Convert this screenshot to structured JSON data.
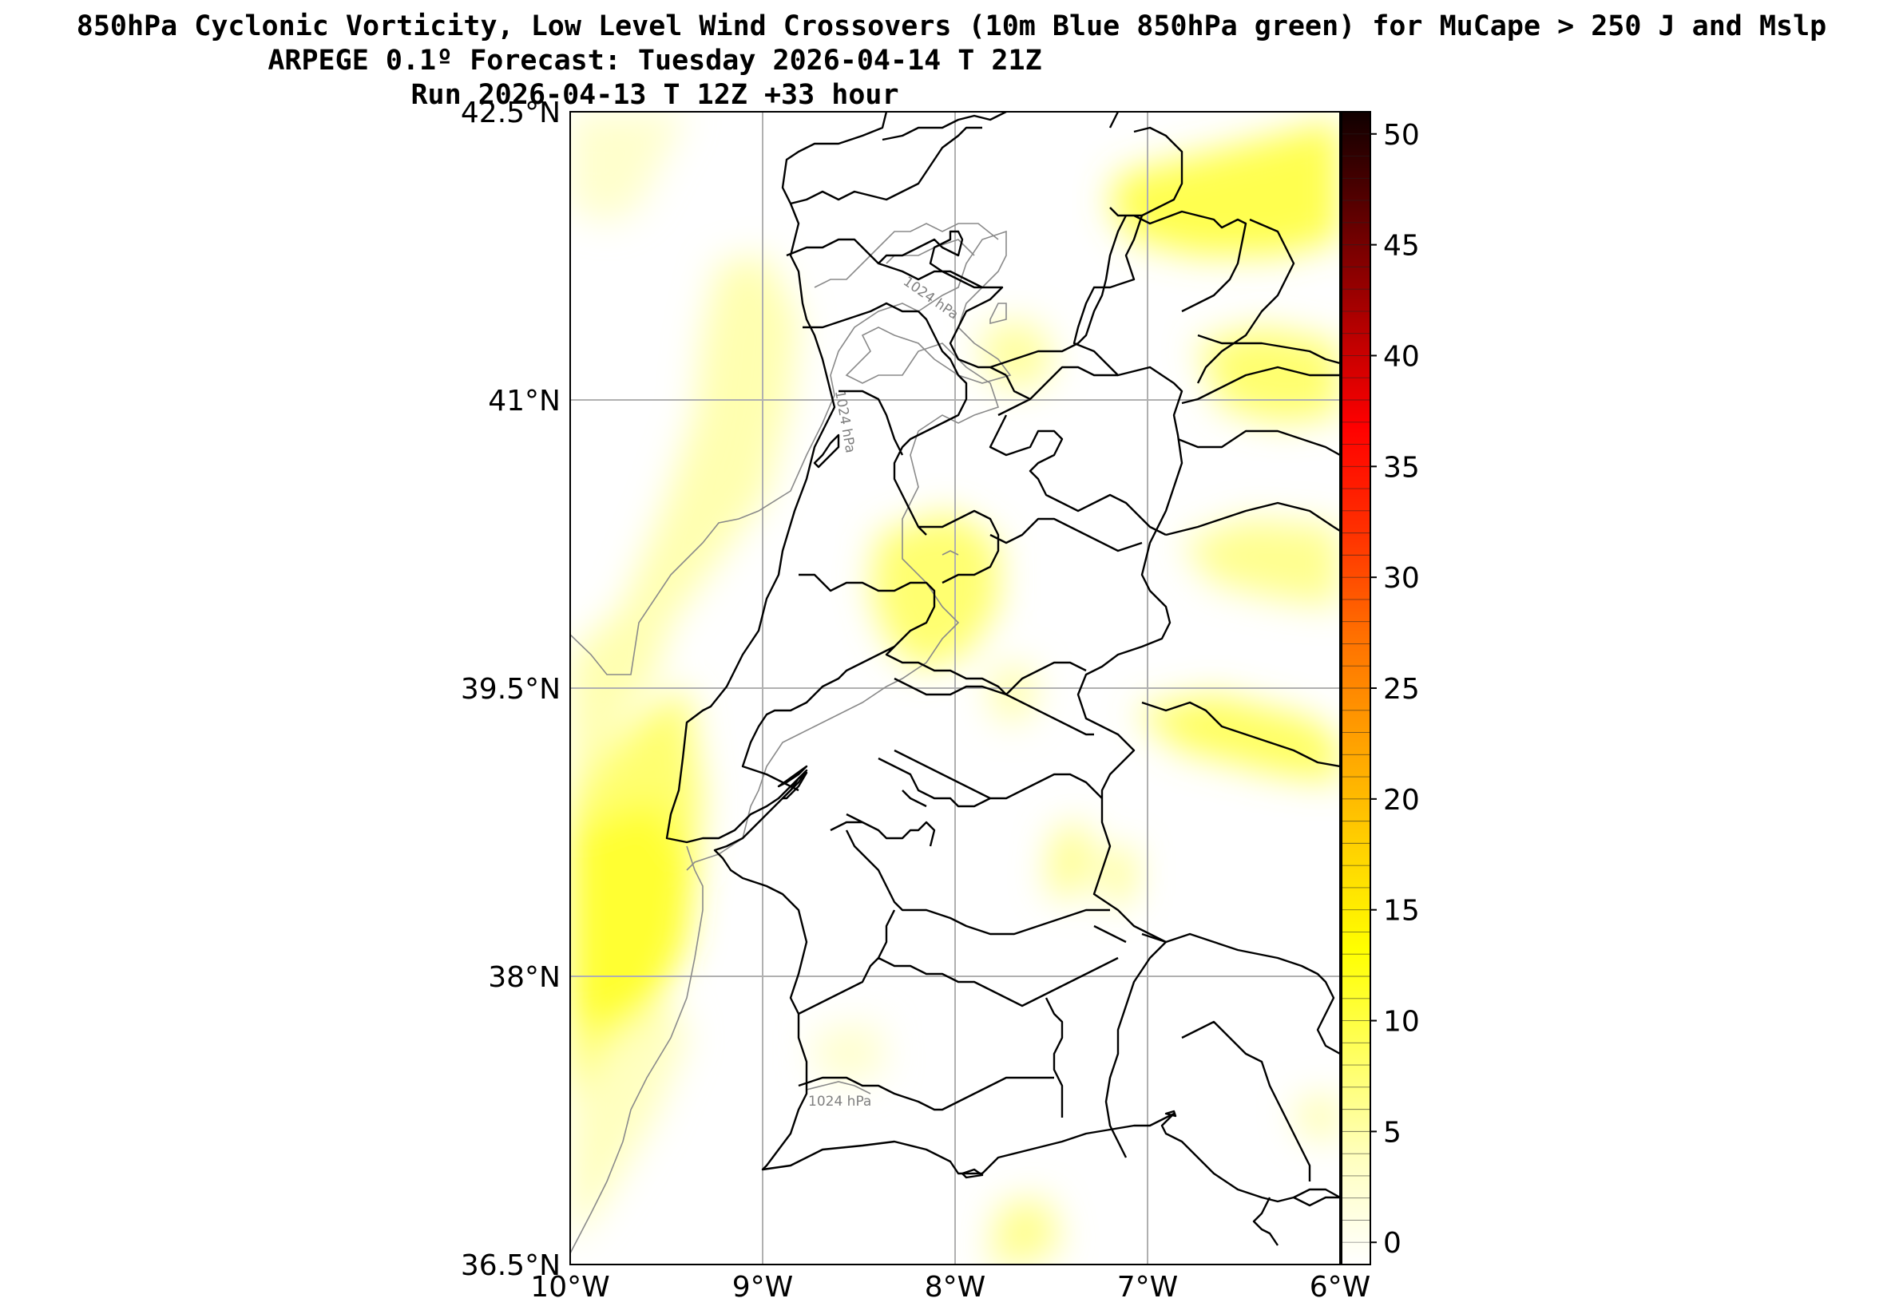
{
  "title": {
    "line1": "850hPa Cyclonic Vorticity, Low Level Wind Crossovers (10m Blue 850hPa green) for MuCape > 250 J and Mslp",
    "line2": "ARPEGE 0.1º Forecast: Tuesday 2026-04-14 T 21Z",
    "line3": "Run 2026-04-13 T 12Z +33 hour"
  },
  "map": {
    "lon_range": [
      -10,
      -6
    ],
    "lat_range": [
      36.5,
      42.5
    ],
    "lat_ticks": [
      {
        "value": 42.5,
        "label": "42.5°N"
      },
      {
        "value": 41,
        "label": "41°N"
      },
      {
        "value": 39.5,
        "label": "39.5°N"
      },
      {
        "value": 38,
        "label": "38°N"
      },
      {
        "value": 36.5,
        "label": "36.5°N"
      }
    ],
    "lon_ticks": [
      {
        "value": -10,
        "label": "10°W"
      },
      {
        "value": -9,
        "label": "9°W"
      },
      {
        "value": -8,
        "label": "8°W"
      },
      {
        "value": -7,
        "label": "7°W"
      },
      {
        "value": -6,
        "label": "6°W"
      }
    ],
    "grid": true,
    "isobar_labels": [
      "1024 hPa",
      "1024 hPa",
      "1024 hPa"
    ],
    "colors": {
      "land_border": "#000000",
      "isobar": "#8a8a8a",
      "grid": "#b0b0b0",
      "cape_low": "#ffff00"
    }
  },
  "colorbar": {
    "min": -1,
    "max": 51,
    "ticks": [
      0,
      5,
      10,
      15,
      20,
      25,
      30,
      35,
      40,
      45,
      50
    ],
    "stops": [
      "#ffffff",
      "#ffffc0",
      "#ffff60",
      "#ffff00",
      "#ffd000",
      "#ffa000",
      "#ff7000",
      "#ff3000",
      "#ff0000",
      "#b00000",
      "#600000",
      "#100000"
    ]
  }
}
